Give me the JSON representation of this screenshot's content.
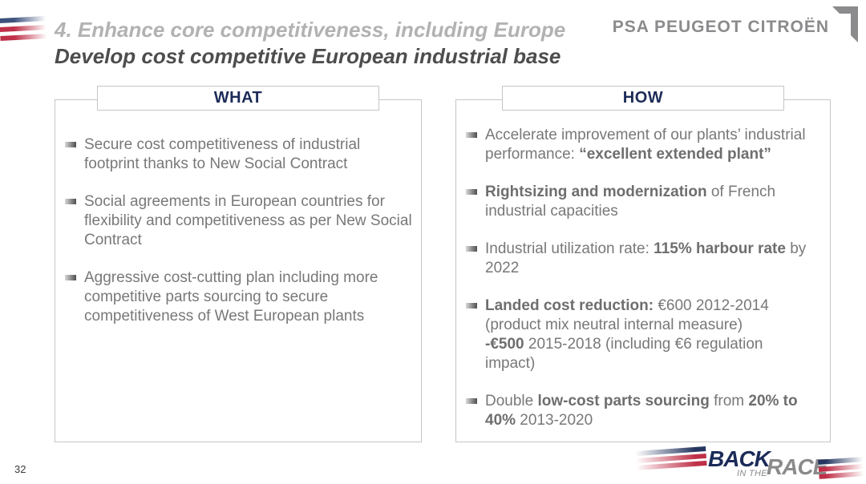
{
  "slide": {
    "kicker": "4. Enhance core competitiveness, including Europe",
    "title": "Develop cost competitive European industrial base",
    "page_number": "32"
  },
  "logo": {
    "text": "PSA PEUGEOT CITROËN",
    "corner_icon": "psa-corner-mark"
  },
  "footer_logo": {
    "back": "BACK",
    "in_the": "IN THE",
    "race": "RACE"
  },
  "colors": {
    "navy": "#1c2b58",
    "red": "#bf3048",
    "blue_stripe": "#3c517c",
    "body_gray": "#787878",
    "kicker_gray": "#b2b2b2",
    "title_gray": "#4d4d4d",
    "logo_gray": "#8b8b8d",
    "border_gray": "#c5c5c5"
  },
  "what_box": {
    "header": "WHAT",
    "bullets": [
      [
        {
          "text": "Secure cost competitiveness of industrial\nfootprint thanks to New Social Contract",
          "bold": false
        }
      ],
      [
        {
          "text": "Social agreements in European countries for\nflexibility and competitiveness as per New Social\nContract",
          "bold": false
        }
      ],
      [
        {
          "text": "Aggressive cost-cutting plan including more\ncompetitive parts sourcing to secure\ncompetitiveness of West European plants",
          "bold": false
        }
      ]
    ]
  },
  "how_box": {
    "header": "HOW",
    "bullets": [
      [
        {
          "text": "Accelerate improvement of our plants’ industrial\nperformance: ",
          "bold": false
        },
        {
          "text": "“excellent extended plant”",
          "bold": true
        }
      ],
      [
        {
          "text": "Rightsizing and modernization",
          "bold": true
        },
        {
          "text": " of French\nindustrial capacities",
          "bold": false
        }
      ],
      [
        {
          "text": "Industrial utilization rate: ",
          "bold": false
        },
        {
          "text": "115% harbour rate",
          "bold": true
        },
        {
          "text": " by\n2022",
          "bold": false
        }
      ],
      [
        {
          "text": "Landed cost reduction:",
          "bold": true
        },
        {
          "text": " €600 2012-2014\n(product mix neutral internal measure)\n",
          "bold": false
        },
        {
          "text": "-€500",
          "bold": true
        },
        {
          "text": " 2015-2018 (including €6 regulation\nimpact)",
          "bold": false
        }
      ],
      [
        {
          "text": "Double ",
          "bold": false
        },
        {
          "text": "low-cost parts sourcing",
          "bold": true
        },
        {
          "text": " from ",
          "bold": false
        },
        {
          "text": "20% to\n40%",
          "bold": true
        },
        {
          "text": " 2013-2020",
          "bold": false
        }
      ]
    ]
  }
}
